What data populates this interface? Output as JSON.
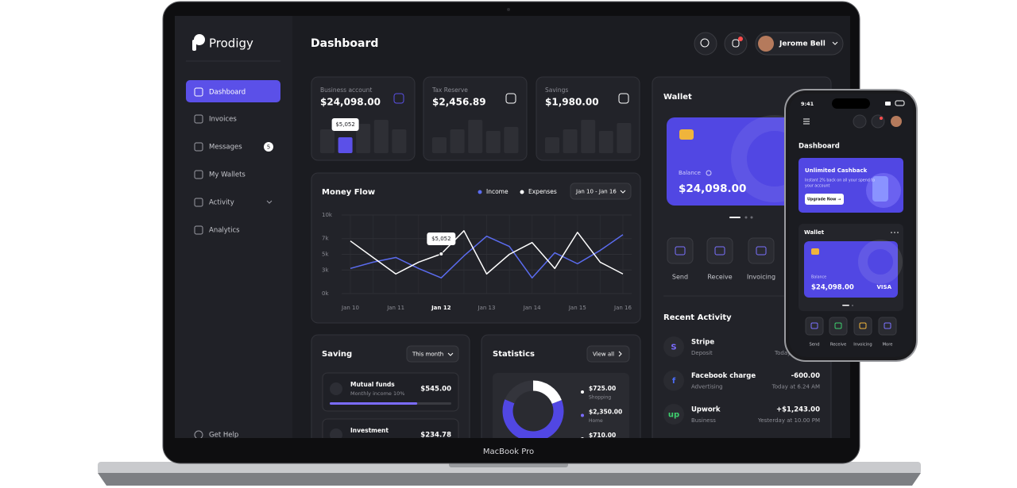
{
  "laptop": {
    "label": "MacBook Pro"
  },
  "sidebar": {
    "logo": "Prodigy",
    "nav": [
      {
        "label": "Dashboard"
      },
      {
        "label": "Invoices"
      },
      {
        "label": "Messages",
        "badge": 5
      },
      {
        "label": "My Wallets"
      },
      {
        "label": "Activity"
      },
      {
        "label": "Analytics"
      }
    ],
    "help": "Get Help"
  },
  "header": {
    "title": "Dashboard",
    "user": "Jerome Bell"
  },
  "stats": [
    {
      "label": "Business account",
      "amount": "$24,098.00",
      "bars": [
        30,
        20,
        37,
        42,
        30
      ],
      "colors": [
        "#2e2f35",
        "#5b50e8",
        "#2e2f35",
        "#2e2f35",
        "#2e2f35"
      ],
      "tooltip": "$5,052"
    },
    {
      "label": "Tax Reserve",
      "amount": "$2,456.89",
      "bars": [
        20,
        30,
        42,
        28,
        33
      ],
      "colors": [
        "#2e2f35",
        "#2e2f35",
        "#2e2f35",
        "#2e2f35",
        "#2e2f35"
      ]
    },
    {
      "label": "Savings",
      "amount": "$1,980.00",
      "bars": [
        20,
        30,
        42,
        28,
        38
      ],
      "colors": [
        "#2e2f35",
        "#2e2f35",
        "#2e2f35",
        "#2e2f35",
        "#2e2f35"
      ]
    }
  ],
  "chart_data": [
    {
      "type": "line",
      "title": "Money Flow",
      "date_range": "Jan 10 - Jan 16",
      "categories": [
        "Jan 10",
        null,
        "Jan 11",
        null,
        "Jan 12",
        null,
        "Jan 13",
        null,
        "Jan 14",
        null,
        "Jan 15",
        null,
        "Jan 16"
      ],
      "series": [
        {
          "name": "Income",
          "color": "#5b6cf0",
          "values": [
            3200,
            4000,
            4600,
            3200,
            2000,
            4800,
            7300,
            6000,
            2000,
            5200,
            3800,
            5500,
            7500
          ]
        },
        {
          "name": "Expenses",
          "color": "#ffffff",
          "values": [
            6700,
            4600,
            2500,
            4000,
            5052,
            8000,
            2500,
            5000,
            6500,
            3200,
            7800,
            4000,
            2500
          ],
          "value_labels": [
            null,
            null,
            null,
            null,
            "$5,052",
            null,
            null,
            null,
            null,
            null,
            null,
            null,
            null
          ]
        }
      ],
      "ylim": [
        0,
        10000
      ],
      "yticks": [
        {
          "value": 0,
          "label": "0k"
        },
        {
          "value": 3000,
          "label": "3k"
        },
        {
          "value": 5000,
          "label": "5k"
        },
        {
          "value": 7000,
          "label": "7k"
        },
        {
          "value": 10000,
          "label": "10k"
        }
      ],
      "grid": true
    },
    {
      "type": "donut",
      "title": "Statistics",
      "button": "View all",
      "categories": [
        "Shopping",
        "Home",
        null
      ],
      "values": [
        725,
        2350,
        710
      ],
      "value_labels": [
        "$725.00",
        "$2,350.00",
        "$710.00"
      ],
      "colors": [
        "#ffffff",
        "#5147e3",
        "#34353c"
      ]
    }
  ],
  "saving": {
    "title": "Saving",
    "period": "This month",
    "items": [
      {
        "name": "Mutual funds",
        "note": "Monthly income 10%",
        "amount": "$545.00",
        "progress": 72
      },
      {
        "name": "Investment",
        "amount": "$234.78"
      }
    ]
  },
  "wallet": {
    "title": "Wallet",
    "balance_label": "Balance",
    "balance": "$24,098.00",
    "actions": [
      "Send",
      "Receive",
      "Invoicing"
    ],
    "activity_title": "Recent Activity",
    "activity": [
      {
        "icon": "S",
        "name": "Stripe",
        "type": "Deposit",
        "time": "Today"
      },
      {
        "icon": "f",
        "name": "Facebook charge",
        "type": "Advertising",
        "amount": "-600.00",
        "time": "Today at 6.24 AM"
      },
      {
        "icon": "up",
        "name": "Upwork",
        "type": "Business",
        "amount": "+$1,243.00",
        "time": "Yesterday at 10.00 PM"
      }
    ]
  },
  "phone": {
    "time": "9:41",
    "title": "Dashboard",
    "promo": {
      "title": "Unlimited Cashback",
      "text": [
        "Instant 2% back on all your spend to",
        "your account"
      ],
      "button": "Upgrade Now →"
    },
    "wallet_title": "Wallet",
    "balance_label": "Balance",
    "balance": "$24,098.00",
    "card_brand": "VISA",
    "actions": [
      "Send",
      "Receive",
      "Invoicing",
      "More"
    ]
  }
}
